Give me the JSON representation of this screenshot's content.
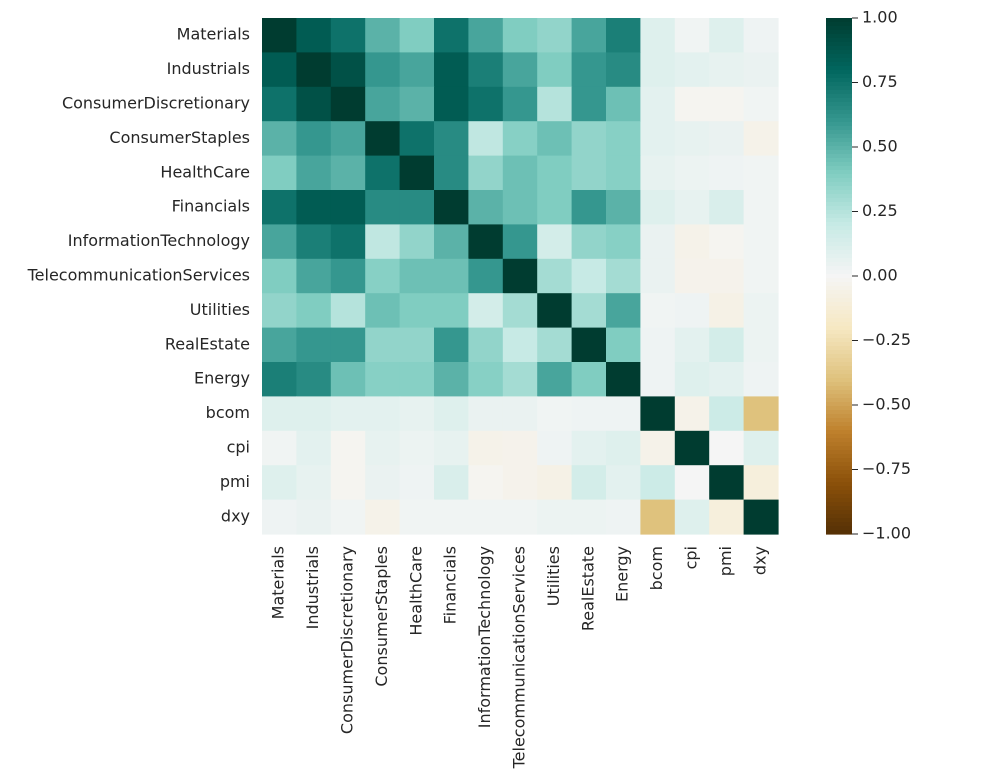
{
  "chart_data": {
    "type": "heatmap",
    "title": "",
    "xlabel": "",
    "ylabel": "",
    "labels": [
      "Materials",
      "Industrials",
      "ConsumerDiscretionary",
      "ConsumerStaples",
      "HealthCare",
      "Financials",
      "InformationTechnology",
      "TelecommunicationServices",
      "Utilities",
      "RealEstate",
      "Energy",
      "bcom",
      "cpi",
      "pmi",
      "dxy"
    ],
    "values": [
      [
        1.0,
        0.85,
        0.75,
        0.5,
        0.4,
        0.75,
        0.55,
        0.4,
        0.35,
        0.55,
        0.7,
        0.1,
        0.02,
        0.1,
        0.03
      ],
      [
        0.85,
        1.0,
        0.9,
        0.6,
        0.55,
        0.85,
        0.7,
        0.55,
        0.4,
        0.6,
        0.65,
        0.1,
        0.08,
        0.06,
        0.05
      ],
      [
        0.75,
        0.9,
        1.0,
        0.55,
        0.5,
        0.85,
        0.75,
        0.6,
        0.25,
        0.6,
        0.45,
        0.08,
        -0.02,
        -0.02,
        0.02
      ],
      [
        0.5,
        0.6,
        0.55,
        1.0,
        0.75,
        0.65,
        0.22,
        0.38,
        0.45,
        0.35,
        0.38,
        0.08,
        0.06,
        0.05,
        -0.05
      ],
      [
        0.4,
        0.55,
        0.5,
        0.75,
        1.0,
        0.65,
        0.35,
        0.45,
        0.4,
        0.35,
        0.38,
        0.06,
        0.04,
        0.03,
        0.02
      ],
      [
        0.75,
        0.85,
        0.85,
        0.65,
        0.65,
        1.0,
        0.5,
        0.45,
        0.4,
        0.6,
        0.5,
        0.1,
        0.06,
        0.12,
        0.02
      ],
      [
        0.55,
        0.7,
        0.75,
        0.22,
        0.35,
        0.5,
        1.0,
        0.6,
        0.15,
        0.35,
        0.38,
        0.05,
        -0.05,
        -0.02,
        0.02
      ],
      [
        0.4,
        0.55,
        0.6,
        0.38,
        0.45,
        0.45,
        0.6,
        1.0,
        0.3,
        0.2,
        0.3,
        0.05,
        -0.04,
        -0.04,
        0.02
      ],
      [
        0.35,
        0.4,
        0.25,
        0.45,
        0.4,
        0.4,
        0.15,
        0.3,
        1.0,
        0.3,
        0.55,
        0.02,
        0.03,
        -0.06,
        0.04
      ],
      [
        0.55,
        0.6,
        0.6,
        0.35,
        0.35,
        0.6,
        0.35,
        0.2,
        0.3,
        1.0,
        0.4,
        0.03,
        0.08,
        0.15,
        0.04
      ],
      [
        0.7,
        0.65,
        0.45,
        0.38,
        0.38,
        0.5,
        0.38,
        0.3,
        0.55,
        0.4,
        1.0,
        0.03,
        0.1,
        0.08,
        0.03
      ],
      [
        0.1,
        0.1,
        0.08,
        0.08,
        0.06,
        0.1,
        0.05,
        0.05,
        0.02,
        0.03,
        0.03,
        1.0,
        -0.05,
        0.18,
        -0.4
      ],
      [
        0.02,
        0.08,
        -0.02,
        0.06,
        0.04,
        0.06,
        -0.05,
        -0.04,
        0.03,
        0.08,
        0.1,
        -0.05,
        1.0,
        0.0,
        0.1
      ],
      [
        0.1,
        0.06,
        -0.02,
        0.05,
        0.03,
        0.12,
        -0.02,
        -0.04,
        -0.06,
        0.15,
        0.08,
        0.18,
        0.0,
        1.0,
        -0.1
      ],
      [
        0.03,
        0.05,
        0.02,
        -0.05,
        0.02,
        0.02,
        0.02,
        0.02,
        0.04,
        0.04,
        0.03,
        -0.4,
        0.1,
        -0.1,
        1.0
      ]
    ],
    "colorbar": {
      "vmin": -1.0,
      "vmax": 1.0,
      "ticks": [
        "1.00",
        "0.75",
        "0.50",
        "0.25",
        "0.00",
        "−0.25",
        "−0.50",
        "−0.75",
        "−1.00"
      ],
      "tick_values": [
        1.0,
        0.75,
        0.5,
        0.25,
        0.0,
        -0.25,
        -0.5,
        -0.75,
        -1.0
      ]
    },
    "colormap": [
      "#543005",
      "#8c510a",
      "#bf812d",
      "#dfc27d",
      "#f6e8c3",
      "#f5f5f5",
      "#c7eae5",
      "#80cdc1",
      "#35978f",
      "#01665e",
      "#003c30"
    ],
    "grid": false,
    "legend": "colorbar-right"
  }
}
